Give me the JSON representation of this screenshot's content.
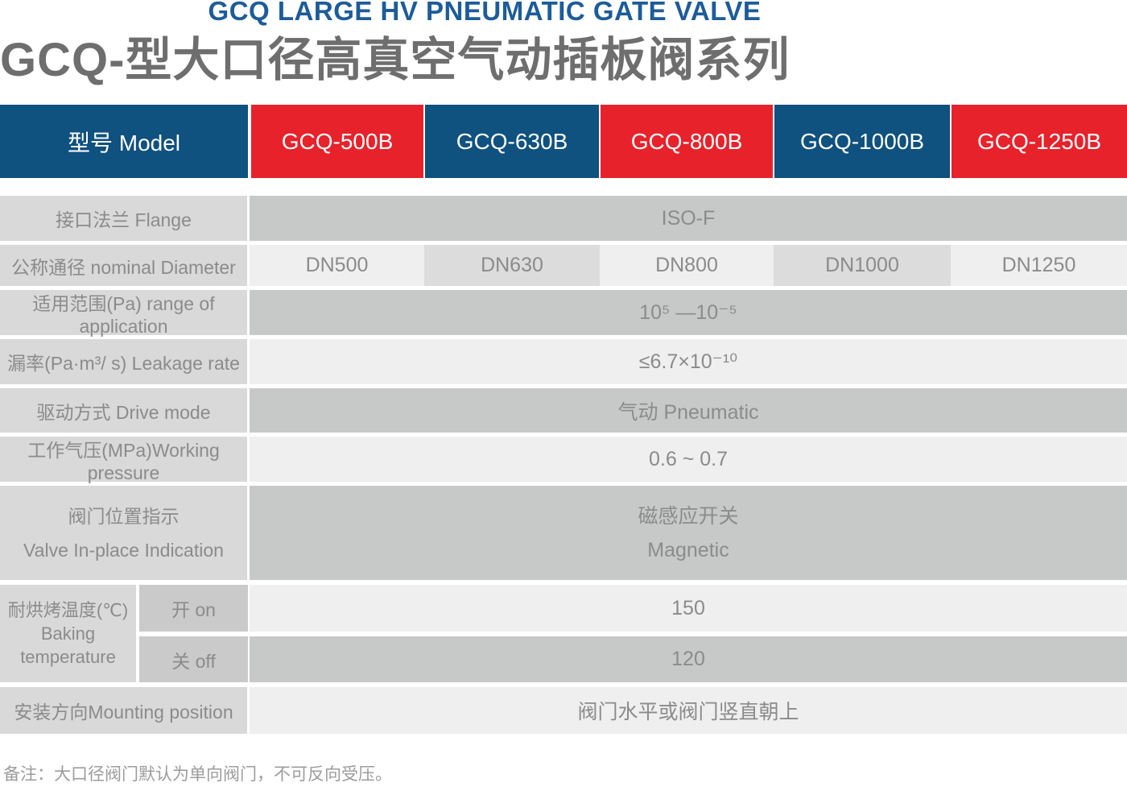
{
  "title": {
    "en": "GCQ LARGE HV PNEUMATIC GATE VALVE",
    "zh": "GCQ-型大口径高真空气动插板阀系列"
  },
  "colors": {
    "blue": "#0f517f",
    "red": "#e7222b",
    "title-blue": "#1d5c99"
  },
  "table": {
    "header": {
      "label": "型号 Model",
      "models": [
        "GCQ-500B",
        "GCQ-630B",
        "GCQ-800B",
        "GCQ-1000B",
        "GCQ-1250B"
      ]
    },
    "rows": {
      "flange": {
        "label": "接口法兰 Flange",
        "value": "ISO-F"
      },
      "diameter": {
        "label": "公称通径 nominal Diameter",
        "values": [
          "DN500",
          "DN630",
          "DN800",
          "DN1000",
          "DN1250"
        ]
      },
      "range": {
        "label": "适用范围(Pa) range of application",
        "value": "10⁵ —10⁻⁵"
      },
      "leakage": {
        "label": "漏率(Pa·m³/ s) Leakage rate",
        "value": "≤6.7×10⁻¹⁰"
      },
      "drive": {
        "label": "驱动方式 Drive mode",
        "value": "气动 Pneumatic"
      },
      "pressure": {
        "label": "工作气压(MPa)Working pressure",
        "value": "0.6 ~ 0.7"
      },
      "indication": {
        "label": "阀门位置指示\nValve In-place Indication",
        "value": "磁感应开关\nMagnetic"
      },
      "baking": {
        "label": "耐烘烤温度(℃)\nBaking\ntemperature",
        "sub_on": "开 on",
        "sub_off": "关 off",
        "value_on": "150",
        "value_off": "120"
      },
      "mounting": {
        "label": "安装方向Mounting position",
        "value": "阀门水平或阀门竖直朝上"
      }
    }
  },
  "note": "备注：大口径阀门默认为单向阀门，不可反向受压。"
}
